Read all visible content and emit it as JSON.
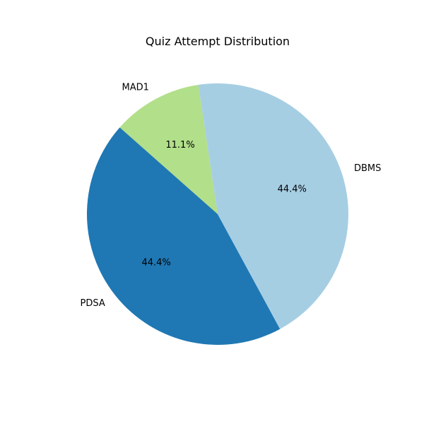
{
  "chart_data": {
    "type": "pie",
    "title": "Quiz Attempt Distribution",
    "slices": [
      {
        "label": "MAD1",
        "value": 11.1,
        "pct_label": "11.1%",
        "color": "#b2df8a"
      },
      {
        "label": "PDSA",
        "value": 44.4,
        "pct_label": "44.4%",
        "color": "#1f78b4"
      },
      {
        "label": "DBMS",
        "value": 44.4,
        "pct_label": "44.4%",
        "color": "#a6cee3"
      }
    ]
  }
}
